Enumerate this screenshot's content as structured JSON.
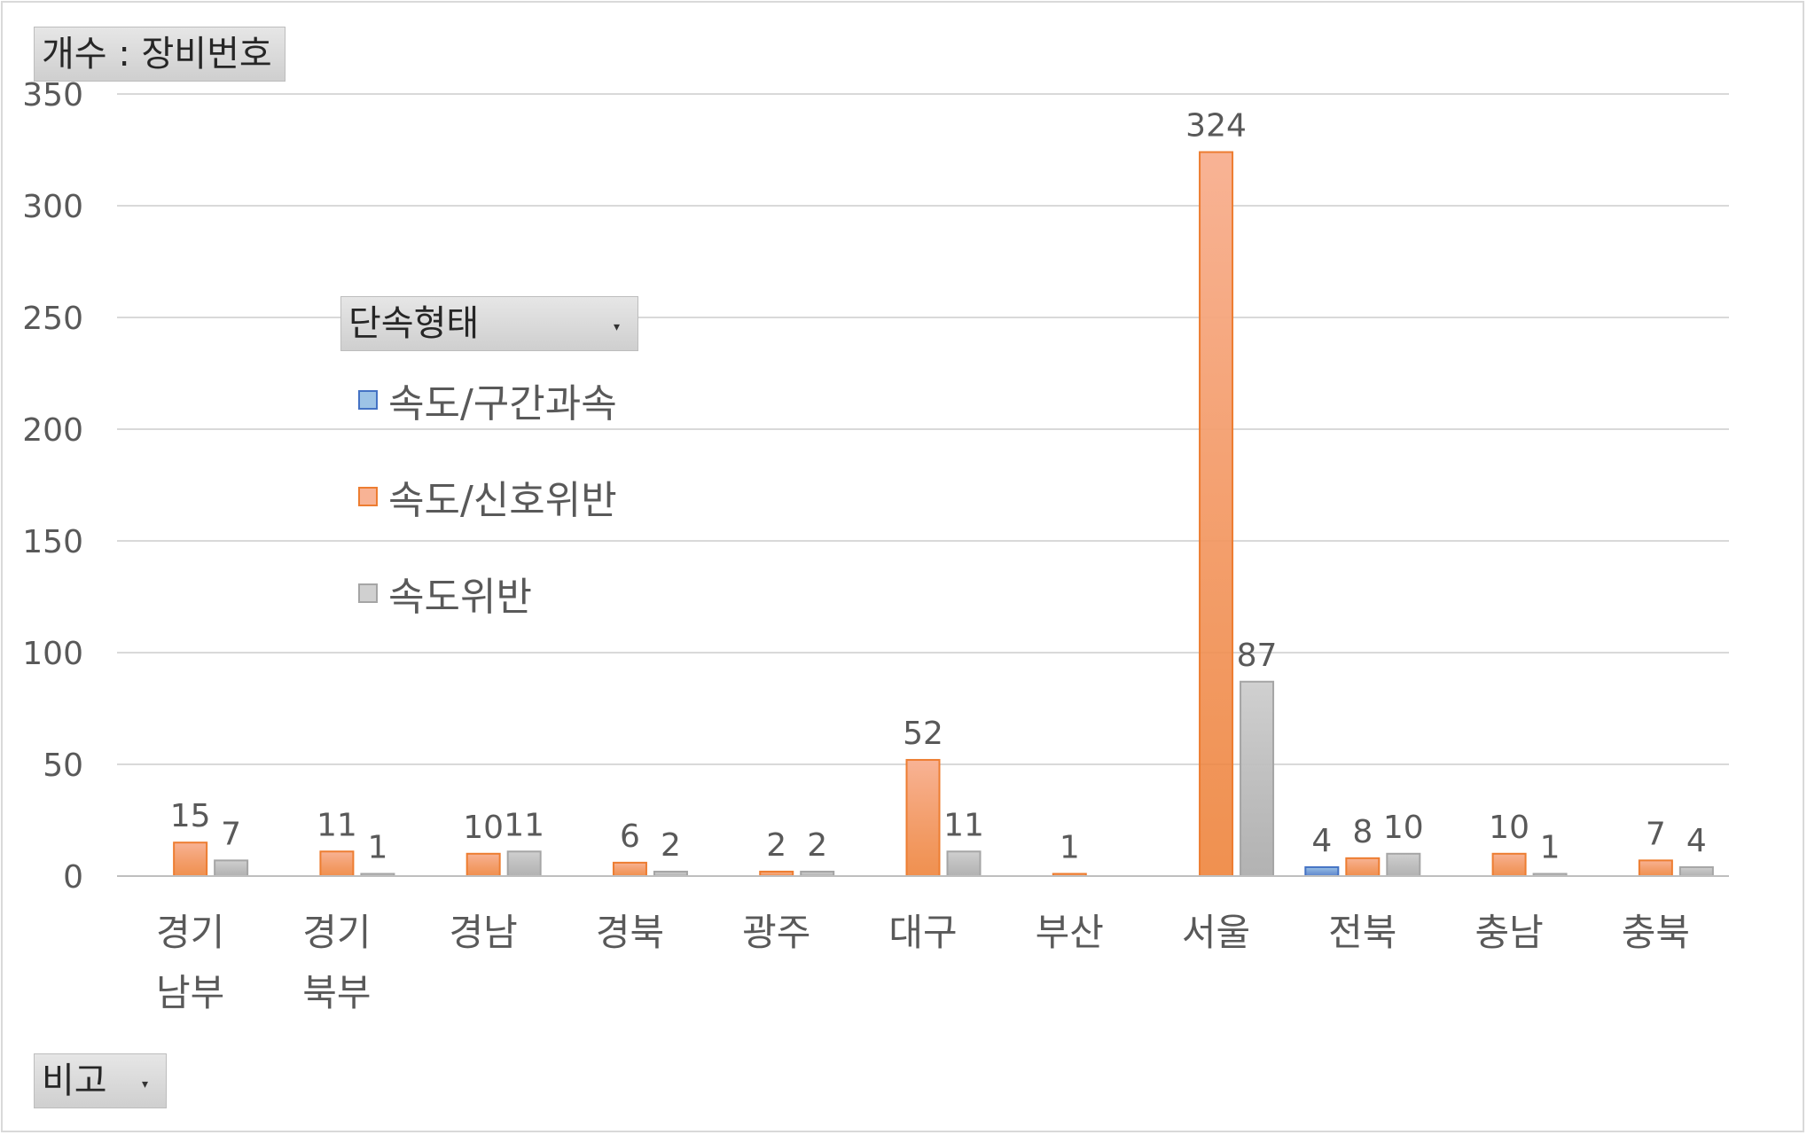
{
  "value_field_label": "개수 : 장비번호",
  "legend_title": "단속형태",
  "filter_label": "비고",
  "dropdown_glyph": "▾",
  "colors": {
    "series_1": "#9dc3e6",
    "series_1_edge": "#4472c4",
    "series_2": "#f8b395",
    "series_2_edge": "#ed7d31",
    "series_3": "#d0d0d0",
    "series_3_edge": "#a5a5a5",
    "grid": "#d9d9d9",
    "text": "#595959"
  },
  "chart_data": {
    "type": "bar",
    "categories": [
      [
        "경기",
        "남부"
      ],
      [
        "경기",
        "북부"
      ],
      [
        "경남"
      ],
      [
        "경북"
      ],
      [
        "광주"
      ],
      [
        "대구"
      ],
      [
        "부산"
      ],
      [
        "서울"
      ],
      [
        "전북"
      ],
      [
        "충남"
      ],
      [
        "충북"
      ]
    ],
    "series": [
      {
        "name": "속도/구간과속",
        "values": [
          null,
          null,
          null,
          null,
          null,
          null,
          null,
          null,
          4,
          null,
          null
        ]
      },
      {
        "name": "속도/신호위반",
        "values": [
          15,
          11,
          10,
          6,
          2,
          52,
          1,
          324,
          8,
          10,
          7
        ]
      },
      {
        "name": "속도위반",
        "values": [
          7,
          1,
          11,
          2,
          2,
          11,
          null,
          87,
          10,
          1,
          4
        ]
      }
    ],
    "ylim": [
      0,
      350
    ],
    "yticks": [
      0,
      50,
      100,
      150,
      200,
      250,
      300,
      350
    ],
    "grid": true,
    "legend_position": "left-inside"
  }
}
